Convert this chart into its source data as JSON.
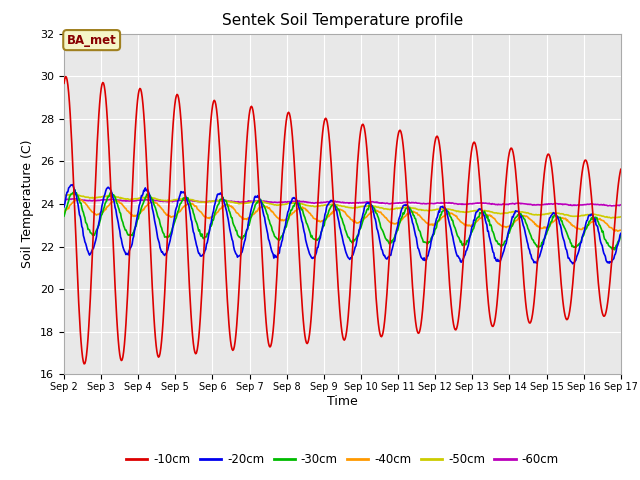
{
  "title": "Sentek Soil Temperature profile",
  "xlabel": "Time",
  "ylabel": "Soil Temperature (C)",
  "ylim": [
    16,
    32
  ],
  "yticks": [
    16,
    18,
    20,
    22,
    24,
    26,
    28,
    30,
    32
  ],
  "annotation_text": "BA_met",
  "bg_color": "#e8e8e8",
  "line_colors": {
    "-10cm": "#dd0000",
    "-20cm": "#0000ee",
    "-30cm": "#00bb00",
    "-40cm": "#ff9900",
    "-50cm": "#cccc00",
    "-60cm": "#bb00bb"
  },
  "legend_labels": [
    "-10cm",
    "-20cm",
    "-30cm",
    "-40cm",
    "-50cm",
    "-60cm"
  ],
  "n_days": 15,
  "pts_per_day": 48
}
